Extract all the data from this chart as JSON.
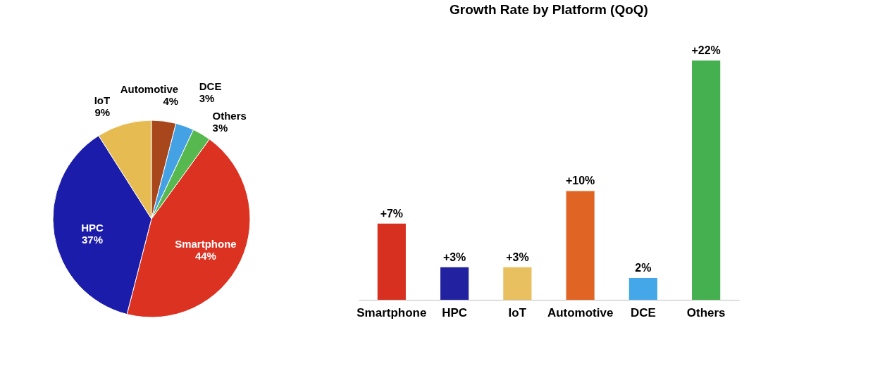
{
  "chart_data": [
    {
      "type": "pie",
      "categories": [
        "Smartphone",
        "HPC",
        "IoT",
        "Automotive",
        "DCE",
        "Others"
      ],
      "values": [
        44,
        37,
        9,
        4,
        3,
        3
      ],
      "colors": [
        "#dc3222",
        "#1c1caa",
        "#e6bc52",
        "#a8461c",
        "#44a2e4",
        "#56b84e"
      ],
      "value_labels": [
        "44%",
        "37%",
        "9%",
        "4%",
        "3%",
        "3%"
      ],
      "legend": false
    },
    {
      "type": "bar",
      "title": "Growth Rate by Platform (QoQ)",
      "categories": [
        "Smartphone",
        "HPC",
        "IoT",
        "Automotive",
        "DCE",
        "Others"
      ],
      "values": [
        7,
        3,
        3,
        10,
        2,
        22
      ],
      "colors": [
        "#d83020",
        "#2222a0",
        "#e8c060",
        "#e06524",
        "#44a8e8",
        "#44b050"
      ],
      "value_labels": [
        "+7%",
        "+3%",
        "+3%",
        "+10%",
        "2%",
        "+22%"
      ],
      "tick_labels": "x",
      "grid": false,
      "legend": false
    }
  ]
}
